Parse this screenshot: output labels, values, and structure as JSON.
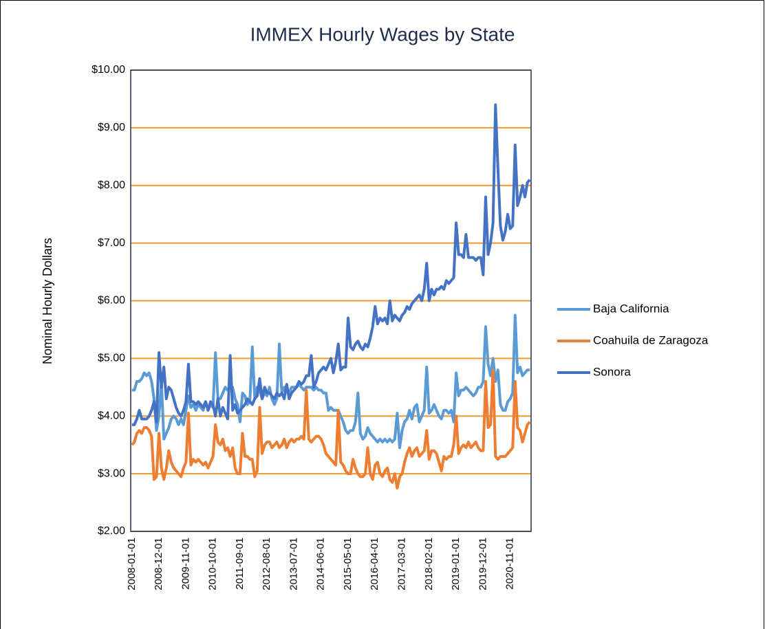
{
  "chart_data": {
    "type": "line",
    "title": "IMMEX Hourly Wages by State",
    "y_label": "Nominal Hourly Dollars",
    "categories": [
      "2008-01-01",
      null,
      null,
      null,
      null,
      null,
      null,
      null,
      null,
      null,
      null,
      "2008-12-01",
      null,
      null,
      null,
      null,
      null,
      null,
      null,
      null,
      null,
      null,
      "2009-11-01",
      null,
      null,
      null,
      null,
      null,
      null,
      null,
      null,
      null,
      null,
      "2010-10-01",
      null,
      null,
      null,
      null,
      null,
      null,
      null,
      null,
      null,
      null,
      "2011-09-01",
      null,
      null,
      null,
      null,
      null,
      null,
      null,
      null,
      null,
      null,
      "2012-08-01",
      null,
      null,
      null,
      null,
      null,
      null,
      null,
      null,
      null,
      null,
      "2013-07-01",
      null,
      null,
      null,
      null,
      null,
      null,
      null,
      null,
      null,
      null,
      "2014-06-01",
      null,
      null,
      null,
      null,
      null,
      null,
      null,
      null,
      null,
      null,
      "2015-05-01",
      null,
      null,
      null,
      null,
      null,
      null,
      null,
      null,
      null,
      null,
      "2016-04-01",
      null,
      null,
      null,
      null,
      null,
      null,
      null,
      null,
      null,
      null,
      "2017-03-01",
      null,
      null,
      null,
      null,
      null,
      null,
      null,
      null,
      null,
      null,
      "2018-02-01",
      null,
      null,
      null,
      null,
      null,
      null,
      null,
      null,
      null,
      null,
      "2019-01-01",
      null,
      null,
      null,
      null,
      null,
      null,
      null,
      null,
      null,
      null,
      "2019-12-01",
      null,
      null,
      null,
      null,
      null,
      null,
      null,
      null,
      null,
      null,
      "2020-11-01",
      null,
      null,
      null,
      null,
      null,
      null,
      null,
      null
    ],
    "series": [
      {
        "name": "Baja California",
        "color": "#5b9bd5",
        "values": [
          4.45,
          4.45,
          4.6,
          4.6,
          4.65,
          4.75,
          4.7,
          4.75,
          4.6,
          4.3,
          3.75,
          4.0,
          4.6,
          3.6,
          3.7,
          3.8,
          3.95,
          4.0,
          3.95,
          3.85,
          3.95,
          3.85,
          4.1,
          4.35,
          4.15,
          4.2,
          4.1,
          4.2,
          4.15,
          4.1,
          4.25,
          4.1,
          4.2,
          4.15,
          5.1,
          4.3,
          4.3,
          4.4,
          4.5,
          4.45,
          4.5,
          4.5,
          4.3,
          4.2,
          3.9,
          4.4,
          4.35,
          4.2,
          4.25,
          5.2,
          4.3,
          4.5,
          4.45,
          4.3,
          4.4,
          4.35,
          4.5,
          4.3,
          4.2,
          4.3,
          5.25,
          4.4,
          4.5,
          4.45,
          4.4,
          4.5,
          4.5,
          4.5,
          4.55,
          4.5,
          4.45,
          4.5,
          4.5,
          4.5,
          4.45,
          4.5,
          4.45,
          4.45,
          4.4,
          4.4,
          4.1,
          4.15,
          4.1,
          4.1,
          4.1,
          4.0,
          3.9,
          3.75,
          3.7,
          3.75,
          3.75,
          3.9,
          4.4,
          3.7,
          3.6,
          3.65,
          3.8,
          3.7,
          3.65,
          3.6,
          3.55,
          3.6,
          3.55,
          3.6,
          3.55,
          3.6,
          3.55,
          3.6,
          4.05,
          3.45,
          3.75,
          3.9,
          3.95,
          4.1,
          3.95,
          4.15,
          4.2,
          3.9,
          4.0,
          4.1,
          4.85,
          4.05,
          4.1,
          4.2,
          4.1,
          4.0,
          3.95,
          4.1,
          4.1,
          4.05,
          4.1,
          3.9,
          4.75,
          4.35,
          4.45,
          4.45,
          4.5,
          4.45,
          4.4,
          4.35,
          4.4,
          4.5,
          4.5,
          4.6,
          5.55,
          4.9,
          4.7,
          5.0,
          4.6,
          4.8,
          4.2,
          4.1,
          4.1,
          4.25,
          4.3,
          4.4,
          5.75,
          4.75,
          4.85,
          4.7,
          4.75,
          4.8,
          4.8
        ]
      },
      {
        "name": "Coahuila de Zaragoza",
        "color": "#ed7d31",
        "values": [
          3.5,
          3.55,
          3.7,
          3.75,
          3.7,
          3.8,
          3.8,
          3.75,
          3.65,
          2.9,
          2.95,
          3.7,
          3.1,
          2.9,
          3.1,
          3.4,
          3.2,
          3.1,
          3.05,
          3.0,
          2.95,
          3.1,
          3.2,
          4.05,
          3.15,
          3.25,
          3.2,
          3.25,
          3.2,
          3.15,
          3.2,
          3.1,
          3.2,
          3.3,
          3.85,
          3.55,
          3.5,
          3.6,
          3.4,
          3.45,
          3.3,
          3.45,
          3.1,
          3.0,
          3.0,
          3.7,
          3.3,
          3.3,
          3.25,
          3.25,
          2.95,
          3.05,
          4.15,
          3.35,
          3.5,
          3.55,
          3.55,
          3.45,
          3.5,
          3.55,
          3.45,
          3.5,
          3.6,
          3.45,
          3.55,
          3.6,
          3.55,
          3.6,
          3.6,
          3.65,
          3.6,
          4.45,
          3.6,
          3.55,
          3.6,
          3.65,
          3.65,
          3.6,
          3.5,
          3.35,
          3.3,
          3.25,
          3.2,
          3.15,
          4.1,
          3.2,
          3.15,
          3.05,
          3.0,
          3.0,
          3.25,
          3.1,
          3.0,
          2.95,
          2.95,
          3.0,
          3.45,
          3.0,
          2.9,
          3.15,
          3.2,
          3.0,
          2.95,
          3.05,
          3.1,
          2.9,
          2.85,
          3.0,
          2.75,
          2.95,
          3.0,
          3.2,
          3.35,
          3.45,
          3.3,
          3.4,
          3.45,
          3.3,
          3.35,
          3.4,
          3.75,
          3.25,
          3.4,
          3.4,
          3.35,
          3.2,
          3.05,
          3.3,
          3.25,
          3.3,
          3.3,
          3.5,
          4.0,
          3.35,
          3.45,
          3.5,
          3.45,
          3.55,
          3.45,
          3.5,
          3.55,
          3.45,
          3.4,
          3.4,
          4.6,
          3.8,
          3.85,
          4.8,
          3.3,
          3.25,
          3.3,
          3.3,
          3.3,
          3.35,
          3.4,
          3.45,
          4.6,
          3.8,
          3.75,
          3.55,
          3.7,
          3.85,
          3.9
        ]
      },
      {
        "name": "Sonora",
        "color": "#4472c4",
        "values": [
          3.85,
          3.85,
          3.95,
          4.1,
          3.95,
          3.95,
          3.95,
          4.0,
          4.1,
          4.25,
          3.9,
          5.1,
          4.5,
          4.85,
          4.3,
          4.5,
          4.45,
          4.3,
          4.15,
          4.05,
          4.0,
          4.1,
          4.25,
          4.9,
          4.25,
          4.25,
          4.2,
          4.25,
          4.2,
          4.15,
          4.25,
          4.1,
          4.25,
          4.2,
          4.0,
          4.3,
          4.0,
          4.15,
          4.05,
          3.95,
          5.05,
          4.1,
          4.2,
          4.05,
          4.1,
          4.15,
          4.2,
          4.3,
          4.25,
          4.2,
          4.3,
          4.35,
          4.65,
          4.3,
          4.5,
          4.4,
          4.4,
          4.35,
          4.3,
          4.4,
          4.35,
          4.4,
          4.3,
          4.55,
          4.3,
          4.4,
          4.45,
          4.5,
          4.6,
          4.55,
          4.6,
          4.7,
          4.7,
          5.05,
          4.5,
          4.6,
          4.75,
          4.8,
          4.85,
          4.8,
          4.9,
          5.0,
          4.75,
          4.95,
          5.25,
          4.8,
          4.85,
          4.85,
          5.7,
          5.2,
          5.15,
          5.25,
          5.3,
          5.2,
          5.15,
          5.25,
          5.2,
          5.35,
          5.55,
          5.9,
          5.6,
          5.7,
          5.65,
          5.7,
          5.6,
          6.0,
          5.65,
          5.75,
          5.7,
          5.65,
          5.75,
          5.8,
          5.9,
          5.85,
          5.95,
          6.0,
          6.05,
          6.1,
          6.0,
          6.2,
          6.65,
          6.0,
          6.2,
          6.1,
          6.2,
          6.2,
          6.25,
          6.2,
          6.35,
          6.3,
          6.35,
          6.4,
          7.35,
          6.8,
          6.8,
          6.75,
          7.15,
          6.75,
          6.75,
          6.75,
          6.7,
          6.75,
          6.75,
          6.45,
          7.8,
          6.8,
          7.0,
          7.35,
          9.4,
          8.3,
          7.3,
          7.05,
          7.2,
          7.5,
          7.25,
          7.3,
          8.7,
          7.65,
          7.8,
          8.0,
          7.8,
          8.05,
          8.1
        ]
      }
    ],
    "ylim": [
      2,
      10
    ],
    "yticks": [
      {
        "value": 2,
        "label": "$2.00"
      },
      {
        "value": 3,
        "label": "$3.00"
      },
      {
        "value": 4,
        "label": "$4.00"
      },
      {
        "value": 5,
        "label": "$5.00"
      },
      {
        "value": 6,
        "label": "$6.00"
      },
      {
        "value": 7,
        "label": "$7.00"
      },
      {
        "value": 8,
        "label": "$8.00"
      },
      {
        "value": 9,
        "label": "$9.00"
      },
      {
        "value": 10,
        "label": "$10.00"
      }
    ],
    "grid": true,
    "grid_color": "#f09a2a",
    "legend": "right"
  }
}
